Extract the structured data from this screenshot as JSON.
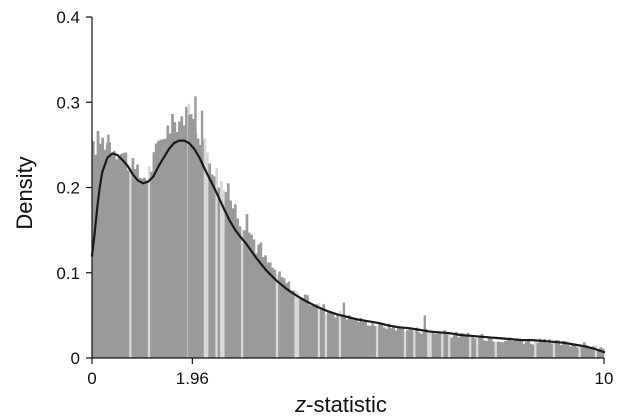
{
  "chart_data": {
    "type": "bar",
    "subtype": "histogram_with_density_curve",
    "title": "",
    "xlabel": "z-statistic",
    "xlabel_italic_part": "z",
    "xlabel_rest": "-statistic",
    "ylabel": "Density",
    "xlim": [
      0,
      10
    ],
    "ylim": [
      0,
      0.4
    ],
    "x_ticks": [
      0,
      1.96,
      10
    ],
    "x_tick_labels": [
      "0",
      "1.96",
      "10"
    ],
    "y_ticks": [
      0,
      0.1,
      0.2,
      0.3,
      0.4
    ],
    "y_tick_labels": [
      "0",
      "0.1",
      "0.2",
      "0.3",
      "0.4"
    ],
    "grid": false,
    "bar_color": "#9a9a9a",
    "bar_highlight_color": "#d8d8d8",
    "curve_color": "#1a1a1a",
    "histogram_profile": {
      "x": [
        0.0,
        0.1,
        0.2,
        0.3,
        0.4,
        0.5,
        0.6,
        0.7,
        0.8,
        0.9,
        1.0,
        1.1,
        1.2,
        1.3,
        1.4,
        1.5,
        1.6,
        1.7,
        1.8,
        1.9,
        2.0,
        2.1,
        2.2,
        2.3,
        2.4,
        2.5,
        2.6,
        2.7,
        2.8,
        3.0,
        3.2,
        3.4,
        3.6,
        3.8,
        4.0,
        4.2,
        4.4,
        4.6,
        4.8,
        5.0,
        5.2,
        5.5,
        6.0,
        6.5,
        7.0,
        7.5,
        8.0,
        8.5,
        9.0,
        9.5,
        9.8,
        10.0
      ],
      "y": [
        0.24,
        0.255,
        0.255,
        0.255,
        0.25,
        0.245,
        0.24,
        0.232,
        0.22,
        0.215,
        0.213,
        0.218,
        0.232,
        0.25,
        0.265,
        0.27,
        0.275,
        0.28,
        0.285,
        0.285,
        0.275,
        0.265,
        0.25,
        0.235,
        0.22,
        0.208,
        0.198,
        0.188,
        0.175,
        0.158,
        0.135,
        0.115,
        0.1,
        0.088,
        0.076,
        0.068,
        0.062,
        0.057,
        0.052,
        0.048,
        0.045,
        0.04,
        0.035,
        0.032,
        0.028,
        0.025,
        0.022,
        0.02,
        0.018,
        0.016,
        0.013,
        0.01
      ]
    },
    "peak_bars": [
      {
        "x": 0.12,
        "y": 0.262
      },
      {
        "x": 0.32,
        "y": 0.262
      },
      {
        "x": 1.75,
        "y": 0.275
      },
      {
        "x": 1.9,
        "y": 0.285
      },
      {
        "x": 2.02,
        "y": 0.307
      },
      {
        "x": 2.15,
        "y": 0.29
      },
      {
        "x": 4.92,
        "y": 0.065
      },
      {
        "x": 6.5,
        "y": 0.05
      }
    ],
    "density_curve": {
      "x": [
        0.0,
        0.05,
        0.1,
        0.15,
        0.2,
        0.3,
        0.4,
        0.5,
        0.6,
        0.7,
        0.8,
        0.9,
        1.0,
        1.1,
        1.2,
        1.3,
        1.4,
        1.5,
        1.6,
        1.7,
        1.8,
        1.9,
        2.0,
        2.1,
        2.2,
        2.3,
        2.4,
        2.5,
        2.6,
        2.7,
        2.8,
        2.9,
        3.0,
        3.2,
        3.4,
        3.6,
        3.8,
        4.0,
        4.2,
        4.4,
        4.6,
        4.8,
        5.0,
        5.2,
        5.4,
        5.6,
        5.8,
        6.0,
        6.2,
        6.4,
        6.6,
        6.8,
        7.0,
        7.2,
        7.4,
        7.6,
        7.8,
        8.0,
        8.2,
        8.4,
        8.6,
        8.8,
        9.0,
        9.2,
        9.4,
        9.6,
        9.8,
        10.0
      ],
      "y": [
        0.12,
        0.145,
        0.175,
        0.2,
        0.218,
        0.235,
        0.24,
        0.238,
        0.232,
        0.225,
        0.215,
        0.208,
        0.205,
        0.207,
        0.213,
        0.225,
        0.235,
        0.245,
        0.252,
        0.255,
        0.255,
        0.252,
        0.245,
        0.235,
        0.222,
        0.21,
        0.198,
        0.185,
        0.172,
        0.16,
        0.15,
        0.142,
        0.135,
        0.118,
        0.103,
        0.091,
        0.081,
        0.073,
        0.066,
        0.06,
        0.055,
        0.051,
        0.048,
        0.045,
        0.043,
        0.041,
        0.038,
        0.036,
        0.035,
        0.033,
        0.031,
        0.03,
        0.029,
        0.027,
        0.026,
        0.025,
        0.024,
        0.023,
        0.022,
        0.021,
        0.021,
        0.02,
        0.019,
        0.018,
        0.016,
        0.014,
        0.011,
        0.007
      ]
    }
  }
}
